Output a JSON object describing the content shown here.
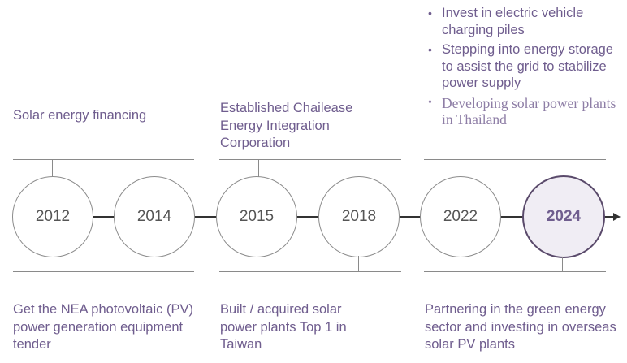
{
  "columns": [
    {
      "top_text": "Solar energy financing",
      "bottom_text": "Get the NEA photovoltaic (PV) power generation equipment tender"
    },
    {
      "top_text": "Established Chailease Energy Integration Corporation",
      "bottom_text": "Built / acquired solar power plants Top 1 in Taiwan"
    },
    {
      "top_bullets": [
        "Invest in electric vehicle charging piles",
        "Stepping into energy storage to assist the grid to stabilize power supply",
        "Developing solar power plants in Thailand"
      ],
      "bottom_text": "Partnering in the green energy sector and investing in overseas solar PV plants"
    }
  ],
  "years": [
    "2012",
    "2014",
    "2015",
    "2018",
    "2022",
    "2024"
  ],
  "highlight_year": "2024",
  "colors": {
    "text": "#6f5d8e",
    "highlight_border": "#5a4a6b",
    "highlight_fill": "#f0edf4",
    "line": "#8a8a8a",
    "axis": "#333333"
  }
}
